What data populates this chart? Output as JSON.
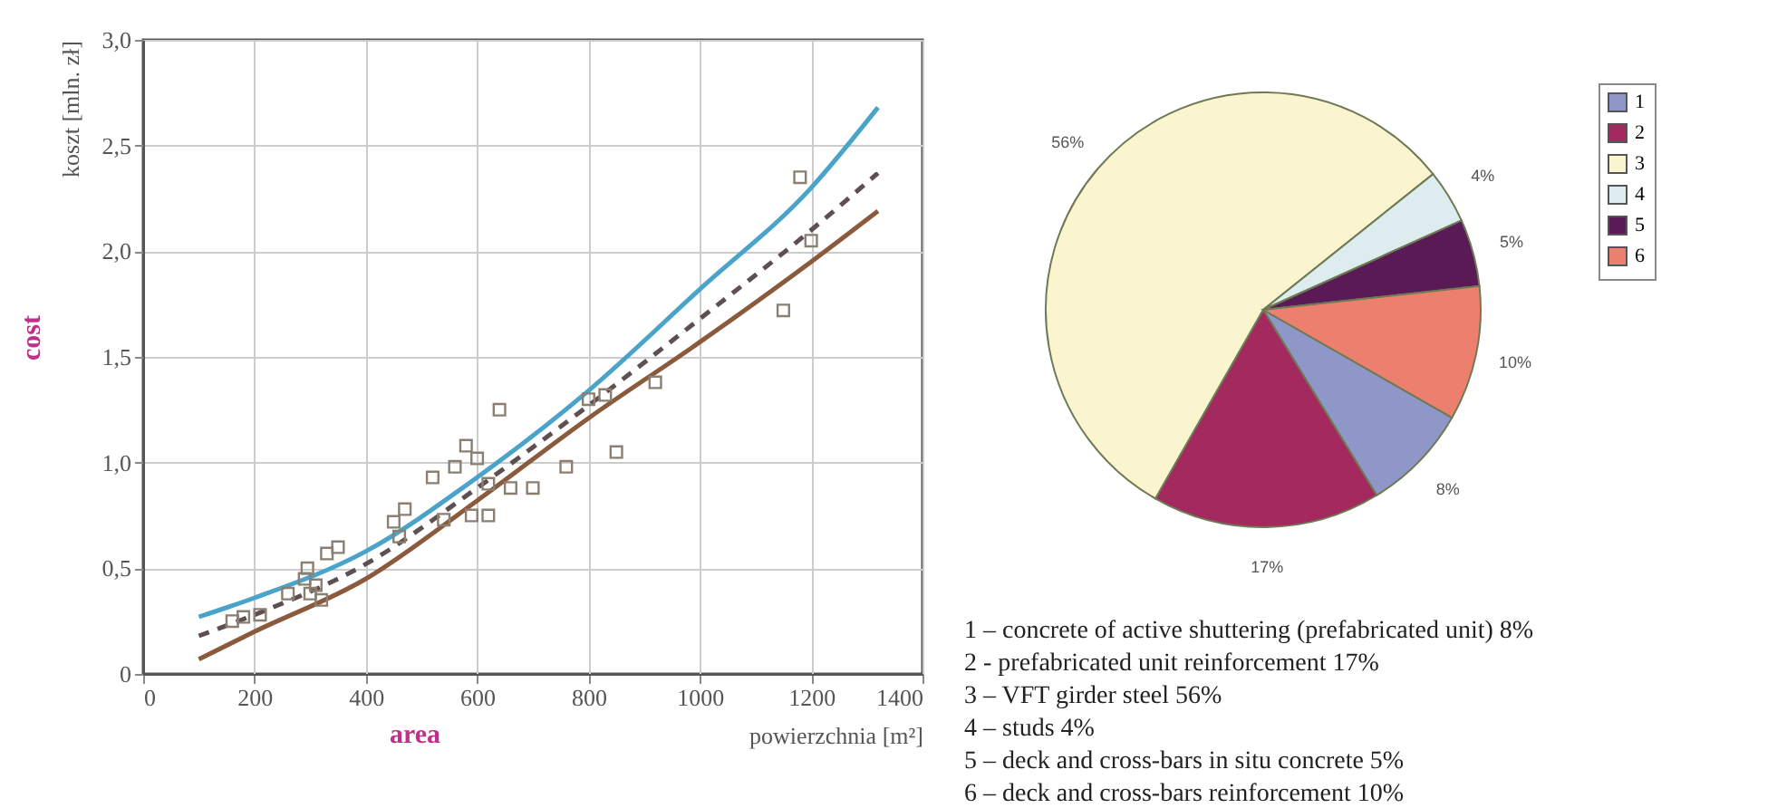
{
  "chart_data": [
    {
      "type": "line",
      "xlabel": "powierzchnia [m²]",
      "ylabel": "koszt [mln. zł]",
      "annotations": [
        "cost",
        "area"
      ],
      "x": [
        100,
        200,
        400,
        600,
        800,
        1000,
        1200,
        1320
      ],
      "xlim": [
        0,
        1400
      ],
      "xticks": [
        0,
        200,
        400,
        600,
        800,
        1000,
        1200,
        1400
      ],
      "ylim": [
        0,
        3.0
      ],
      "yticks": [
        {
          "value": 0,
          "label": "0"
        },
        {
          "value": 0.5,
          "label": "0,5"
        },
        {
          "value": 1.0,
          "label": "1,0"
        },
        {
          "value": 1.5,
          "label": "1,5"
        },
        {
          "value": 2.0,
          "label": "2,0"
        },
        {
          "value": 2.5,
          "label": "2,5"
        },
        {
          "value": 3.0,
          "label": "3,0"
        }
      ],
      "grid": true,
      "series": [
        {
          "type": "line",
          "color": "#4aa3c9",
          "line_style": "solid",
          "values": [
            0.27,
            0.36,
            0.58,
            0.93,
            1.34,
            1.82,
            2.3,
            2.68
          ]
        },
        {
          "type": "line",
          "color": "#5e5050",
          "line_style": "dashed",
          "values": [
            0.18,
            0.28,
            0.52,
            0.88,
            1.27,
            1.68,
            2.1,
            2.37
          ]
        },
        {
          "type": "line",
          "color": "#8b5a3c",
          "line_style": "solid",
          "values": [
            0.07,
            0.2,
            0.45,
            0.82,
            1.21,
            1.57,
            1.95,
            2.19
          ]
        },
        {
          "type": "scatter",
          "marker": "square",
          "color": "#8a7f70",
          "x": [
            160,
            180,
            210,
            260,
            290,
            295,
            300,
            310,
            320,
            330,
            350,
            450,
            460,
            470,
            520,
            540,
            560,
            580,
            590,
            600,
            620,
            620,
            640,
            660,
            700,
            760,
            800,
            830,
            850,
            920,
            1150,
            1180,
            1200
          ],
          "values": [
            0.25,
            0.27,
            0.28,
            0.38,
            0.45,
            0.5,
            0.38,
            0.42,
            0.35,
            0.57,
            0.6,
            0.72,
            0.65,
            0.78,
            0.93,
            0.73,
            0.98,
            1.08,
            0.75,
            1.02,
            0.9,
            0.75,
            1.25,
            0.88,
            0.88,
            0.98,
            1.3,
            1.32,
            1.05,
            1.38,
            1.72,
            2.35,
            2.05
          ]
        }
      ]
    },
    {
      "type": "pie",
      "categories": [
        "1",
        "2",
        "3",
        "4",
        "5",
        "6"
      ],
      "values": [
        8,
        17,
        56,
        4,
        5,
        10
      ],
      "colors": [
        "#8f97c9",
        "#a3295e",
        "#fbf5cf",
        "#dcecef",
        "#5a1a55",
        "#ec7f6e"
      ],
      "value_labels": [
        "8%",
        "17%",
        "56%",
        "4%",
        "5%",
        "10%"
      ],
      "legend": "right",
      "annotations": [
        "1 – concrete of active shuttering (prefabricated  unit) 8%",
        "2 -  prefabricated unit reinforcement  17%",
        "3 – VFT girder steel 56%",
        "4 – studs 4%",
        "5 – deck and cross-bars in situ concrete 5%",
        "6 – deck and cross-bars reinforcement 10%"
      ]
    }
  ]
}
